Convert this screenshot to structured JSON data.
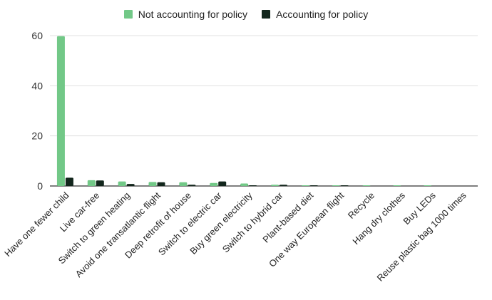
{
  "chart_data": {
    "type": "bar",
    "categories": [
      "Have one fewer child",
      "Live car-free",
      "Switch to green heating",
      "Avoid one transatlantic flight",
      "Deep retrofit of house",
      "Switch to electric car",
      "Buy green electricity",
      "Switch to hybrid car",
      "Plant-based diet",
      "One way European flight",
      "Recycle",
      "Hang dry clothes",
      "Buy LEDs",
      "Reuse plastic bag 1000 times"
    ],
    "series": [
      {
        "name": "Not accounting for policy",
        "color": "#72c887",
        "values": [
          59.8,
          2.3,
          1.8,
          1.6,
          1.5,
          1.2,
          1.0,
          0.5,
          0.3,
          0.3,
          0.2,
          0.2,
          0.1,
          0.0
        ]
      },
      {
        "name": "Accounting for policy",
        "color": "#12261c",
        "values": [
          3.3,
          2.2,
          0.8,
          1.5,
          0.5,
          1.8,
          0.1,
          0.5,
          0.1,
          0.1,
          0.0,
          0.0,
          0.0,
          0.0
        ]
      }
    ],
    "yticks": [
      0,
      20,
      40,
      60
    ],
    "ylim": [
      0,
      60
    ],
    "grid": true,
    "legend_position": "top"
  }
}
